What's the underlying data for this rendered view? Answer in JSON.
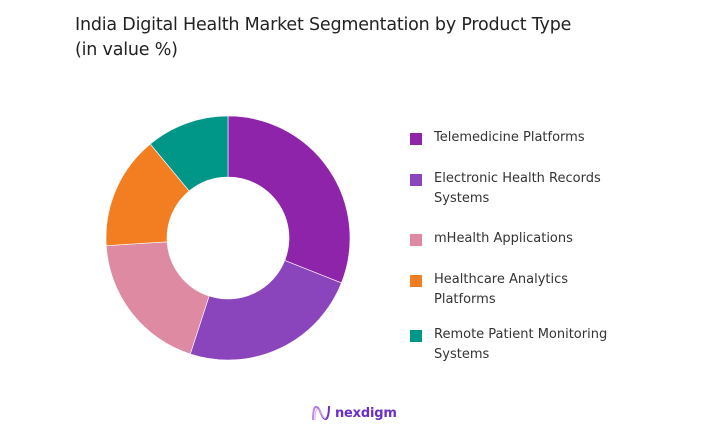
{
  "title": {
    "line1": "India Digital Health Market Segmentation by Product Type",
    "line2": "(in value %)"
  },
  "chart_data": {
    "type": "pie",
    "variant": "donut",
    "title": "India Digital Health Market Segmentation by Product Type (in value %)",
    "categories": [
      "Telemedicine Platforms",
      "Electronic Health Records Systems",
      "mHealth Applications",
      "Healthcare Analytics Platforms",
      "Remote Patient Monitoring Systems"
    ],
    "values": [
      31,
      24,
      19,
      15,
      11
    ],
    "colors": [
      "#8e24aa",
      "#8a45bd",
      "#de8aa2",
      "#f37e22",
      "#009688"
    ],
    "legend_position": "right",
    "start_angle_deg": 0,
    "direction": "clockwise"
  },
  "legend": {
    "items": [
      {
        "label": "Telemedicine Platforms",
        "color": "#8e24aa"
      },
      {
        "label": "Electronic Health Records Systems",
        "color": "#8a45bd"
      },
      {
        "label": "mHealth Applications",
        "color": "#de8aa2"
      },
      {
        "label": "Healthcare Analytics Platforms",
        "color": "#f37e22"
      },
      {
        "label": "Remote Patient Monitoring Systems",
        "color": "#009688"
      }
    ]
  },
  "brand": {
    "name": "nexdigm",
    "logo_icon": "wave-n-logo-icon"
  }
}
